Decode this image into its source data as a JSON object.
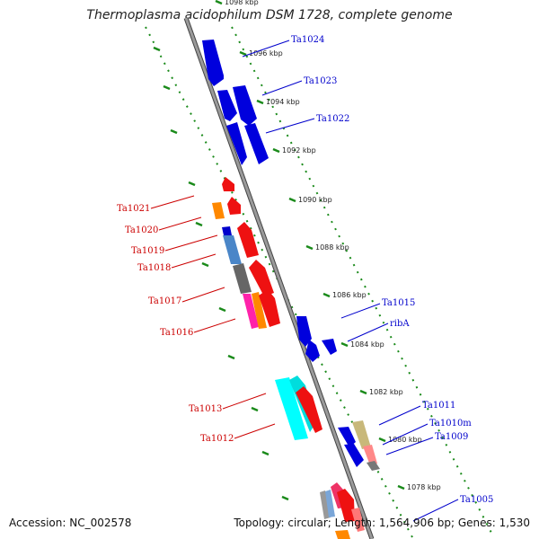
{
  "header": {
    "title": "Thermoplasma acidophilum DSM 1728, complete genome"
  },
  "footer": {
    "accession": "Accession: NC_002578",
    "summary": "Topology: circular; Length: 1,564,906 bp; Genes: 1,530"
  },
  "colors": {
    "forward": "#dd0000",
    "reverse": "#0000cc",
    "backbone": "#808080",
    "ticks": "#1a8a1a"
  },
  "kbp_labels": [
    "1098 kbp",
    "1096 kbp",
    "1094 kbp",
    "1092 kbp",
    "1090 kbp",
    "1088 kbp",
    "1086 kbp",
    "1084 kbp",
    "1082 kbp",
    "1080 kbp",
    "1078 kbp"
  ],
  "genes_forward": [
    "Ta1021",
    "Ta1020",
    "Ta1019",
    "Ta1018",
    "Ta1017",
    "Ta1016",
    "Ta1013",
    "Ta1012"
  ],
  "genes_reverse": [
    "Ta1024",
    "Ta1023",
    "Ta1022",
    "Ta1015",
    "ribA",
    "Ta1011",
    "Ta1010m",
    "Ta1009",
    "Ta1005"
  ]
}
